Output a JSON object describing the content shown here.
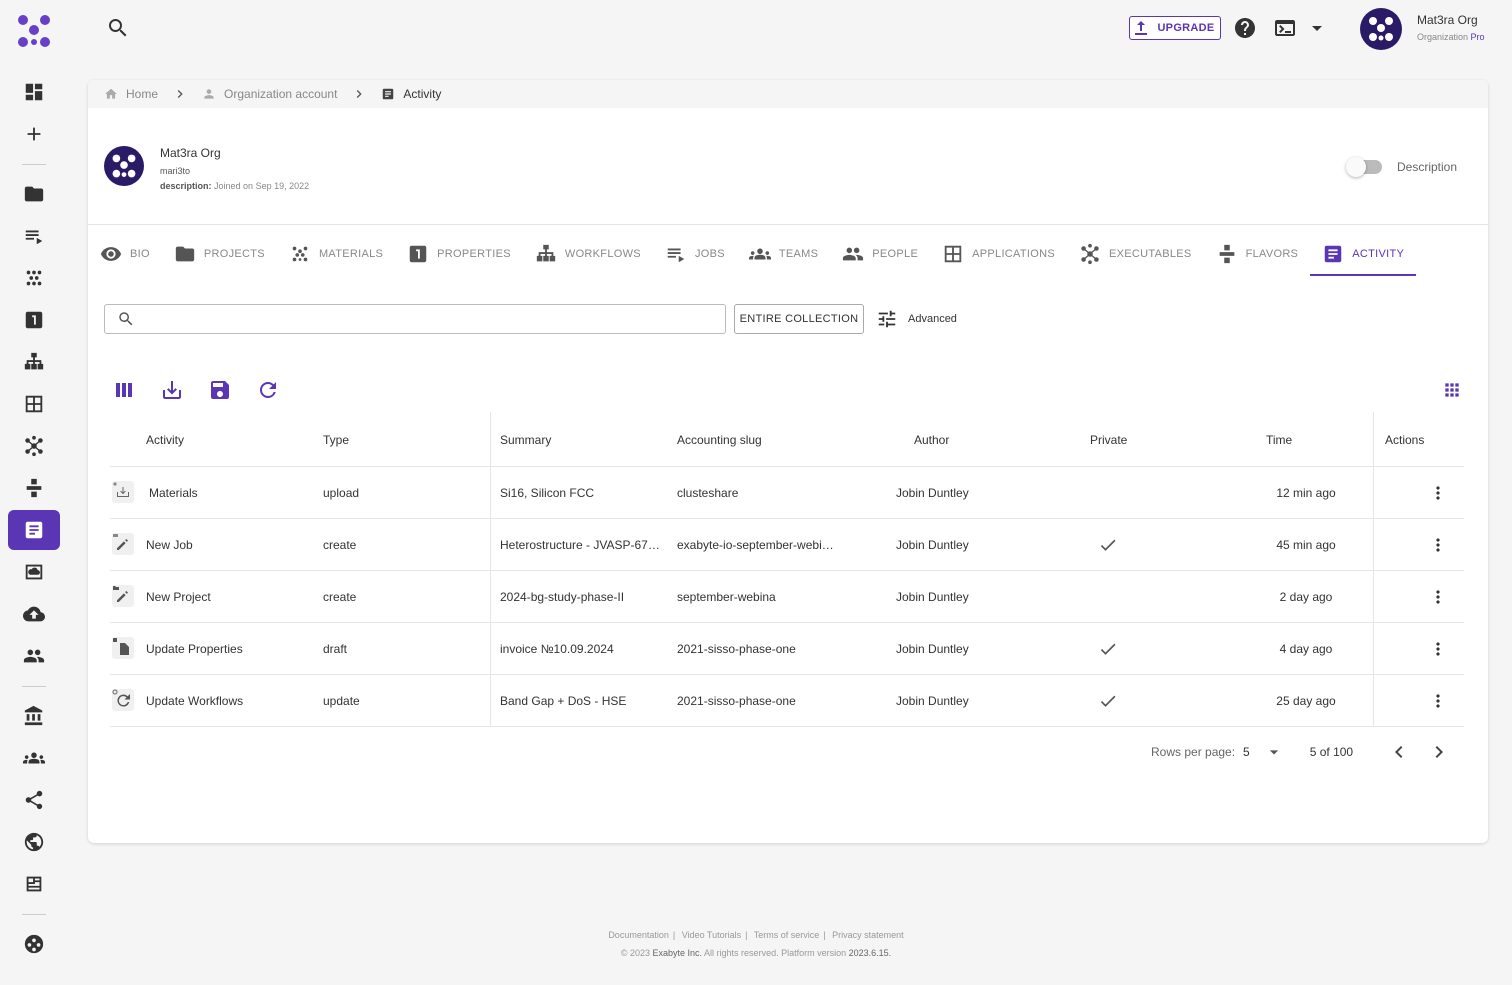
{
  "colors": {
    "accent": "#5a36b5",
    "text": "#333333",
    "muted": "#888888"
  },
  "sidebar": {
    "items": [
      {
        "name": "dashboard-icon"
      },
      {
        "name": "add-icon"
      },
      {
        "name": "folder-icon"
      },
      {
        "name": "jobs-icon"
      },
      {
        "name": "materials-icon"
      },
      {
        "name": "properties-icon"
      },
      {
        "name": "workflows-icon"
      },
      {
        "name": "applications-icon"
      },
      {
        "name": "executables-icon"
      },
      {
        "name": "flavors-icon"
      },
      {
        "name": "activity-icon",
        "active": true
      },
      {
        "name": "cloud-storage-icon"
      },
      {
        "name": "cloud-upload-icon"
      },
      {
        "name": "people-icon"
      },
      {
        "name": "bank-icon"
      },
      {
        "name": "teams-icon"
      },
      {
        "name": "share-icon"
      },
      {
        "name": "globe-icon"
      },
      {
        "name": "news-icon"
      },
      {
        "name": "support-icon"
      }
    ]
  },
  "topbar": {
    "upgrade_label": "UPGRADE",
    "org_name": "Mat3ra Org",
    "org_sub": "Organization",
    "org_plan": "Pro"
  },
  "breadcrumb": {
    "home": "Home",
    "account": "Organization account",
    "current": "Activity"
  },
  "profile": {
    "name": "Mat3ra Org",
    "handle": "mari3to",
    "desc_label": "description:",
    "desc_value": "Joined on Sep 19, 2022",
    "toggle_label": "Description"
  },
  "tabs": [
    {
      "label": "BIO",
      "icon": "eye-icon"
    },
    {
      "label": "PROJECTS",
      "icon": "folder-icon"
    },
    {
      "label": "MATERIALS",
      "icon": "materials-icon"
    },
    {
      "label": "PROPERTIES",
      "icon": "properties-icon"
    },
    {
      "label": "WORKFLOWS",
      "icon": "workflows-icon"
    },
    {
      "label": "JOBS",
      "icon": "jobs-icon"
    },
    {
      "label": "TEAMS",
      "icon": "teams-icon"
    },
    {
      "label": "PEOPLE",
      "icon": "people-icon"
    },
    {
      "label": "APPLICATIONS",
      "icon": "applications-icon"
    },
    {
      "label": "EXECUTABLES",
      "icon": "executables-icon"
    },
    {
      "label": "FLAVORS",
      "icon": "flavors-icon"
    },
    {
      "label": "ACTIVITY",
      "icon": "activity-icon",
      "active": true
    }
  ],
  "search": {
    "value": "",
    "placeholder": ""
  },
  "entire_collection_label": "ENTIRE COLLECTION",
  "advanced_label": "Advanced",
  "table": {
    "headers": {
      "activity": "Activity",
      "type": "Type",
      "summary": "Summary",
      "slug": "Accounting slug",
      "author": "Author",
      "private": "Private",
      "time": "Time",
      "actions": "Actions"
    },
    "rows": [
      {
        "activity": "Materials",
        "icon": "download-icon",
        "type": "upload",
        "summary": "Si16, Silicon FCC",
        "slug": "clusteshare",
        "author": "Jobin Duntley",
        "private": false,
        "time": "12 min ago"
      },
      {
        "activity": "New Job",
        "icon": "edit-icon",
        "type": "create",
        "summary": "Heterostructure - JVASP-67…",
        "slug": "exabyte-io-september-webi…",
        "author": "Jobin Duntley",
        "private": true,
        "time": "45 min ago"
      },
      {
        "activity": "New Project",
        "icon": "edit-icon",
        "type": "create",
        "summary": "2024-bg-study-phase-II",
        "slug": "september-webina",
        "author": "Jobin Duntley",
        "private": false,
        "time": "2 day ago"
      },
      {
        "activity": "Update Properties",
        "icon": "draft-icon",
        "type": "draft",
        "summary": "invoice №10.09.2024",
        "slug": "2021-sisso-phase-one",
        "author": "Jobin Duntley",
        "private": true,
        "time": "4 day ago"
      },
      {
        "activity": "Update Workflows",
        "icon": "refresh-icon",
        "type": "update",
        "summary": "Band Gap + DoS - HSE",
        "slug": "2021-sisso-phase-one",
        "author": "Jobin Duntley",
        "private": true,
        "time": "25 day ago"
      }
    ]
  },
  "pagination": {
    "rows_per_page_label": "Rows per page:",
    "rows_per_page": "5",
    "count": "5 of 100"
  },
  "footer": {
    "links": [
      "Documentation",
      "Video Tutorials",
      "Terms of service",
      "Privacy statement"
    ],
    "copyright_prefix": "© 2023",
    "company": "Exabyte Inc.",
    "rights": "All rights reserved. Platform version",
    "version": "2023.6.15."
  }
}
